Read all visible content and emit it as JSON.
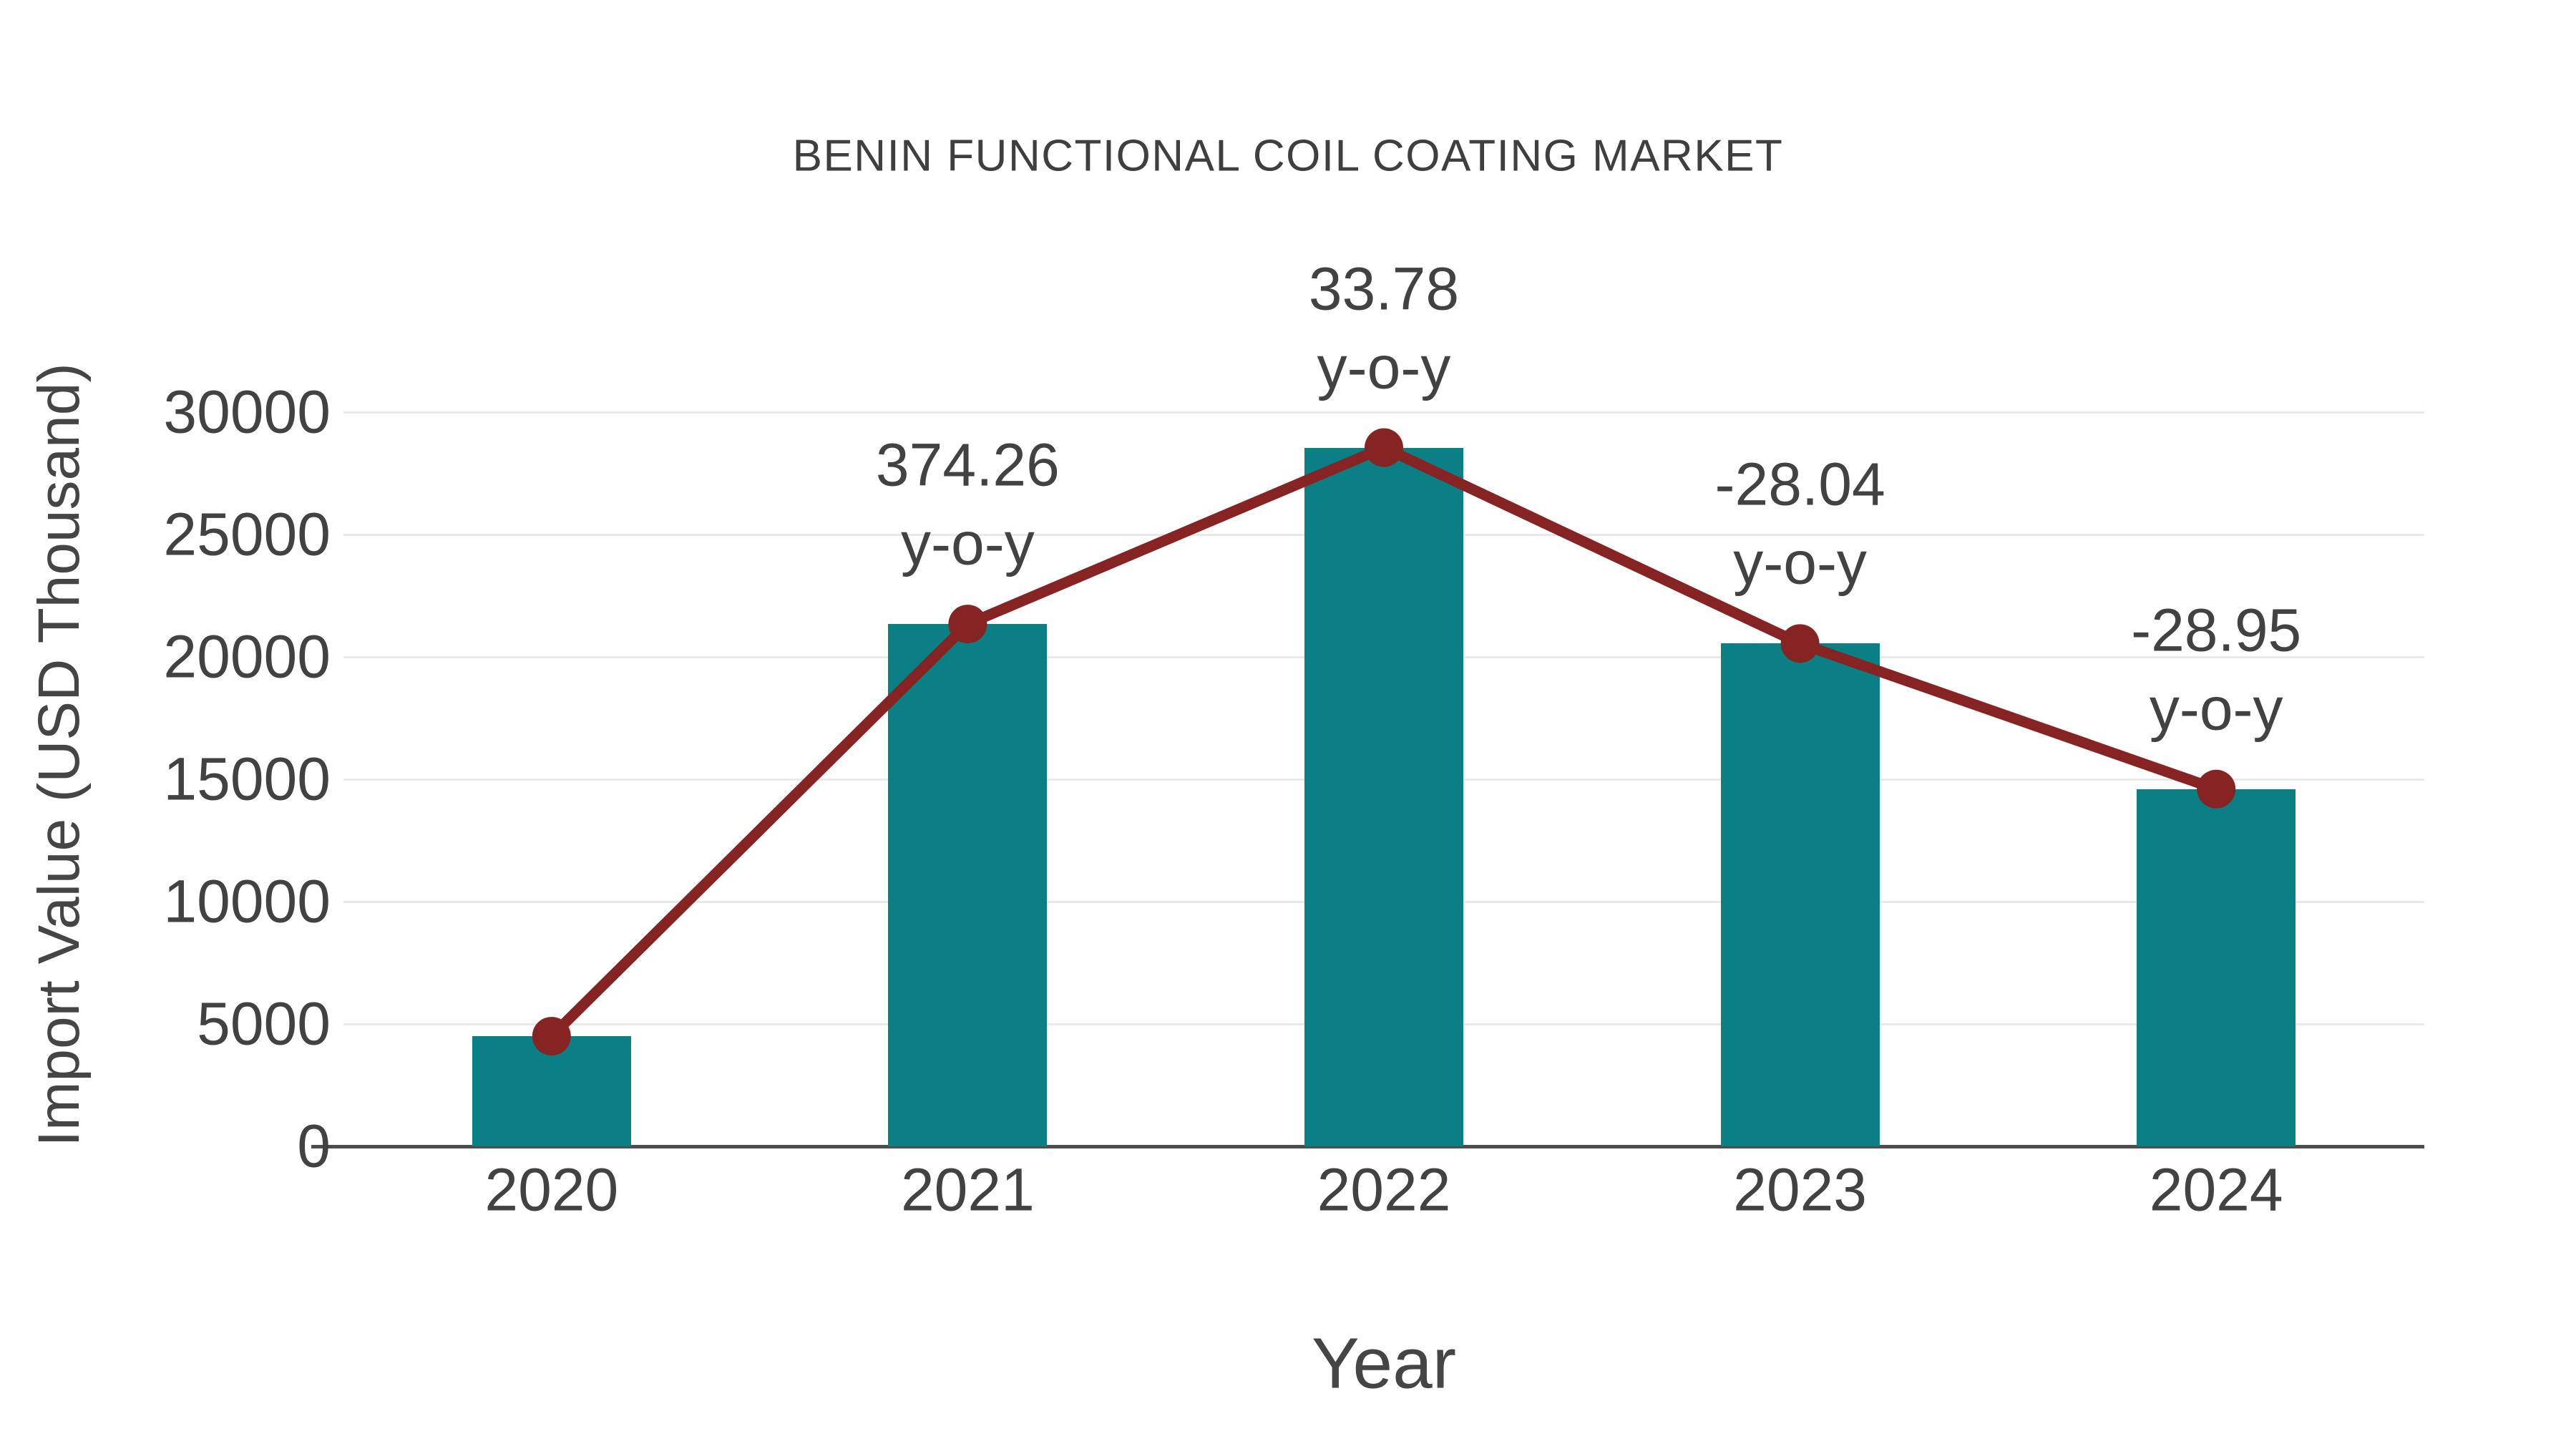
{
  "chart_data": {
    "type": "bar",
    "title": "BENIN FUNCTIONAL COIL COATING MARKET",
    "xlabel": "Year",
    "ylabel": "Import Value (USD Thousand)",
    "categories": [
      "2020",
      "2021",
      "2022",
      "2023",
      "2024"
    ],
    "series": [
      {
        "name": "Import Value bars",
        "type": "bar",
        "values": [
          4500,
          21341.7,
          28550.9,
          20545.2,
          14597.4
        ],
        "color": "#0a8084"
      },
      {
        "name": "Import Value trend line",
        "type": "line",
        "values": [
          4500,
          21341.7,
          28550.9,
          20545.2,
          14597.4
        ],
        "color": "#862323"
      }
    ],
    "annotations": [
      {
        "category": "2021",
        "value_label": "374.26",
        "sub_label": "y-o-y"
      },
      {
        "category": "2022",
        "value_label": "33.78",
        "sub_label": "y-o-y"
      },
      {
        "category": "2023",
        "value_label": "-28.04",
        "sub_label": "y-o-y"
      },
      {
        "category": "2024",
        "value_label": "-28.95",
        "sub_label": "y-o-y"
      }
    ],
    "yticks": [
      0,
      5000,
      10000,
      15000,
      20000,
      25000,
      30000
    ],
    "ylim": [
      0,
      30000
    ],
    "grid": "horizontal",
    "legend_position": "none",
    "colors": {
      "bar": "#0a8084",
      "line": "#862323",
      "gridline": "#e9e9e9",
      "axis_line": "#4d4d4d",
      "tick_text": "#424242",
      "title_text": "#3f3f3f"
    }
  }
}
